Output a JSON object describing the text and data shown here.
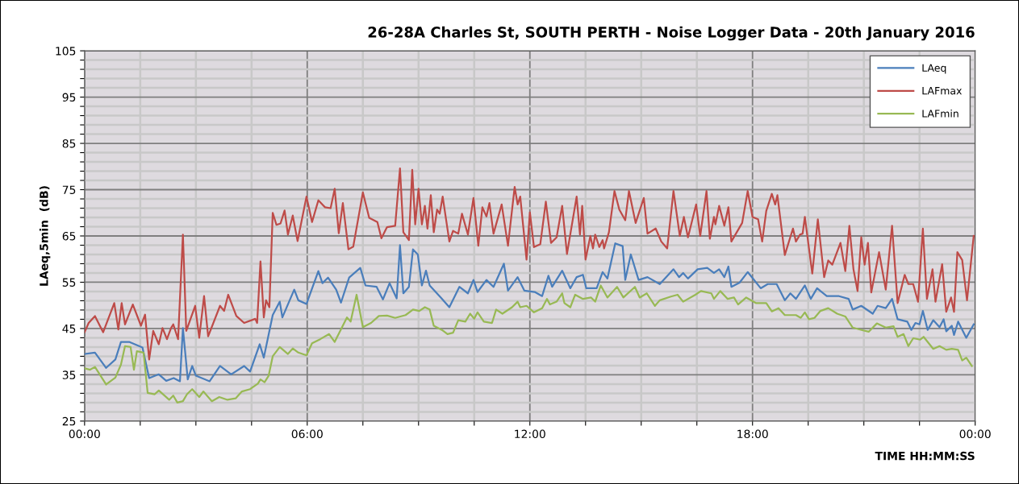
{
  "chart_data": {
    "type": "line",
    "title": "26-28A Charles St, SOUTH PERTH - Noise Logger Data - 20th January 2016",
    "xlabel": "TIME HH:MM:SS",
    "ylabel": "LAeq,5min  (dB)",
    "xlim": [
      0,
      24
    ],
    "ylim": [
      25,
      105
    ],
    "xticks": [
      {
        "value": 0,
        "label": "00:00"
      },
      {
        "value": 1.5,
        "label": null
      },
      {
        "value": 3,
        "label": null
      },
      {
        "value": 4.5,
        "label": null
      },
      {
        "value": 6,
        "label": "06:00"
      },
      {
        "value": 7.5,
        "label": null
      },
      {
        "value": 9,
        "label": null
      },
      {
        "value": 10.5,
        "label": null
      },
      {
        "value": 12,
        "label": "12:00"
      },
      {
        "value": 13.5,
        "label": null
      },
      {
        "value": 15,
        "label": null
      },
      {
        "value": 16.5,
        "label": null
      },
      {
        "value": 18,
        "label": "18:00"
      },
      {
        "value": 19.5,
        "label": null
      },
      {
        "value": 21,
        "label": null
      },
      {
        "value": 22.5,
        "label": null
      },
      {
        "value": 24,
        "label": "00:00"
      }
    ],
    "yticks": [
      25,
      {
        "value": 27,
        "label": null
      },
      {
        "value": 29,
        "label": null
      },
      {
        "value": 31,
        "label": null
      },
      {
        "value": 33,
        "label": null
      },
      35,
      {
        "value": 37,
        "label": null
      },
      {
        "value": 39,
        "label": null
      },
      {
        "value": 41,
        "label": null
      },
      {
        "value": 43,
        "label": null
      },
      45,
      {
        "value": 47,
        "label": null
      },
      {
        "value": 49,
        "label": null
      },
      {
        "value": 51,
        "label": null
      },
      {
        "value": 53,
        "label": null
      },
      55,
      {
        "value": 57,
        "label": null
      },
      {
        "value": 59,
        "label": null
      },
      {
        "value": 61,
        "label": null
      },
      {
        "value": 63,
        "label": null
      },
      65,
      {
        "value": 67,
        "label": null
      },
      {
        "value": 69,
        "label": null
      },
      {
        "value": 71,
        "label": null
      },
      {
        "value": 73,
        "label": null
      },
      75,
      {
        "value": 77,
        "label": null
      },
      {
        "value": 79,
        "label": null
      },
      {
        "value": 81,
        "label": null
      },
      {
        "value": 83,
        "label": null
      },
      85,
      {
        "value": 87,
        "label": null
      },
      {
        "value": 89,
        "label": null
      },
      {
        "value": 91,
        "label": null
      },
      {
        "value": 93,
        "label": null
      },
      95,
      {
        "value": 97,
        "label": null
      },
      {
        "value": 99,
        "label": null
      },
      {
        "value": 101,
        "label": null
      },
      {
        "value": 103,
        "label": null
      },
      105
    ],
    "grid": true,
    "legend": "top right",
    "marker": "none",
    "line_style": "solid",
    "series": [
      {
        "name": "LAeq",
        "color": "#4a7ebb",
        "x": [
          0,
          0.28,
          0.58,
          0.83,
          0.98,
          1.2,
          1.56,
          1.74,
          2.0,
          2.2,
          2.4,
          2.57,
          2.65,
          2.78,
          2.9,
          3.0,
          3.37,
          3.65,
          3.95,
          4.3,
          4.46,
          4.72,
          4.83,
          5.07,
          5.26,
          5.33,
          5.65,
          5.76,
          5.98,
          6.3,
          6.41,
          6.56,
          6.78,
          6.91,
          7.13,
          7.43,
          7.57,
          7.87,
          8.04,
          8.22,
          8.41,
          8.5,
          8.59,
          8.74,
          8.85,
          8.98,
          9.09,
          9.2,
          9.3,
          9.6,
          9.83,
          10.1,
          10.33,
          10.48,
          10.59,
          10.83,
          11.02,
          11.3,
          11.41,
          11.67,
          11.85,
          12.13,
          12.33,
          12.5,
          12.6,
          12.87,
          13.09,
          13.26,
          13.43,
          13.52,
          13.8,
          13.96,
          14.09,
          14.3,
          14.5,
          14.57,
          14.72,
          14.93,
          15.17,
          15.5,
          15.87,
          16.02,
          16.13,
          16.26,
          16.52,
          16.78,
          16.96,
          17.1,
          17.24,
          17.35,
          17.43,
          17.65,
          17.87,
          18.22,
          18.41,
          18.65,
          18.87,
          19.02,
          19.17,
          19.41,
          19.57,
          19.74,
          20.0,
          20.33,
          20.59,
          20.7,
          20.93,
          21.24,
          21.37,
          21.59,
          21.76,
          21.91,
          22.17,
          22.28,
          22.39,
          22.5,
          22.59,
          22.72,
          22.87,
          23.04,
          23.15,
          23.22,
          23.37,
          23.43,
          23.54,
          23.76,
          23.96
        ],
        "values": [
          39.5,
          39.8,
          36.5,
          38.3,
          42.1,
          42.1,
          40.9,
          34.3,
          35.1,
          33.7,
          34.3,
          33.6,
          45.1,
          34.0,
          36.9,
          34.8,
          33.6,
          36.9,
          35.1,
          36.9,
          35.7,
          41.6,
          38.7,
          47.9,
          50.8,
          47.4,
          53.4,
          51.1,
          50.3,
          57.4,
          54.8,
          56.0,
          53.4,
          50.6,
          56.0,
          58.1,
          54.3,
          54.0,
          51.3,
          54.8,
          51.5,
          63.0,
          52.6,
          54.0,
          62.1,
          61.0,
          54.3,
          57.5,
          54.3,
          51.7,
          49.6,
          54.0,
          52.6,
          55.5,
          52.9,
          55.5,
          54.0,
          59.0,
          53.2,
          56.1,
          53.2,
          52.9,
          52.0,
          56.4,
          54.0,
          57.5,
          53.7,
          56.1,
          56.6,
          53.7,
          53.7,
          57.2,
          55.8,
          63.4,
          62.8,
          55.5,
          61.0,
          55.5,
          56.1,
          54.6,
          57.8,
          56.1,
          57.0,
          55.8,
          57.8,
          58.1,
          57.0,
          57.8,
          56.1,
          58.4,
          54.0,
          54.9,
          57.2,
          53.7,
          54.6,
          54.6,
          51.1,
          52.6,
          51.4,
          54.3,
          51.4,
          53.7,
          52.0,
          52.0,
          51.4,
          49.1,
          49.9,
          48.2,
          49.9,
          49.4,
          51.4,
          47.0,
          46.5,
          44.7,
          46.2,
          45.9,
          48.8,
          44.7,
          46.8,
          45.3,
          47.0,
          44.4,
          45.6,
          43.6,
          46.5,
          43.0,
          45.9
        ]
      },
      {
        "name": "LAFmax",
        "color": "#be4b48",
        "x": [
          0,
          0.11,
          0.28,
          0.5,
          0.8,
          0.91,
          1.0,
          1.09,
          1.3,
          1.52,
          1.63,
          1.74,
          1.85,
          2.0,
          2.1,
          2.22,
          2.33,
          2.39,
          2.52,
          2.65,
          2.74,
          2.98,
          3.09,
          3.22,
          3.33,
          3.65,
          3.76,
          3.87,
          4.09,
          4.3,
          4.6,
          4.65,
          4.74,
          4.83,
          4.89,
          4.98,
          5.07,
          5.17,
          5.28,
          5.39,
          5.48,
          5.61,
          5.74,
          5.98,
          6.13,
          6.3,
          6.48,
          6.63,
          6.74,
          6.85,
          6.96,
          7.11,
          7.24,
          7.5,
          7.67,
          7.89,
          8.0,
          8.15,
          8.37,
          8.5,
          8.59,
          8.74,
          8.83,
          8.91,
          9.0,
          9.09,
          9.17,
          9.24,
          9.33,
          9.41,
          9.5,
          9.57,
          9.65,
          9.83,
          9.93,
          10.07,
          10.17,
          10.33,
          10.48,
          10.61,
          10.72,
          10.83,
          10.91,
          11.02,
          11.24,
          11.41,
          11.59,
          11.67,
          11.74,
          11.91,
          12.0,
          12.11,
          12.28,
          12.43,
          12.57,
          12.72,
          12.87,
          13.0,
          13.26,
          13.35,
          13.41,
          13.5,
          13.63,
          13.7,
          13.76,
          13.87,
          13.96,
          14.0,
          14.13,
          14.28,
          14.41,
          14.57,
          14.67,
          14.85,
          15.07,
          15.17,
          15.39,
          15.54,
          15.7,
          15.87,
          16.04,
          16.15,
          16.26,
          16.48,
          16.59,
          16.76,
          16.85,
          16.96,
          17.0,
          17.1,
          17.24,
          17.35,
          17.43,
          17.72,
          17.87,
          18.0,
          18.15,
          18.26,
          18.37,
          18.52,
          18.61,
          18.67,
          18.87,
          19.09,
          19.17,
          19.28,
          19.35,
          19.41,
          19.61,
          19.76,
          19.93,
          20.04,
          20.15,
          20.37,
          20.5,
          20.61,
          20.72,
          20.83,
          20.93,
          21.02,
          21.11,
          21.2,
          21.41,
          21.59,
          21.76,
          21.91,
          22.1,
          22.2,
          22.33,
          22.46,
          22.59,
          22.7,
          22.85,
          22.93,
          23.11,
          23.22,
          23.35,
          23.43,
          23.52,
          23.65,
          23.78,
          23.96
        ],
        "values": [
          44.2,
          46.2,
          47.7,
          44.2,
          50.5,
          44.8,
          50.5,
          45.9,
          50.2,
          45.6,
          48.0,
          38.3,
          44.5,
          41.6,
          45.1,
          42.7,
          45.1,
          45.9,
          42.7,
          65.3,
          44.5,
          49.9,
          43.0,
          52.0,
          43.3,
          49.9,
          48.8,
          52.3,
          47.7,
          46.2,
          47.1,
          46.2,
          59.5,
          47.4,
          51.1,
          49.6,
          70.0,
          67.4,
          67.7,
          70.5,
          65.3,
          69.4,
          63.9,
          73.5,
          68.0,
          72.7,
          71.2,
          71.0,
          75.2,
          65.6,
          72.1,
          62.1,
          62.7,
          74.4,
          68.9,
          68.0,
          64.5,
          66.9,
          67.2,
          79.6,
          65.8,
          64.1,
          79.3,
          67.5,
          75.2,
          67.5,
          71.5,
          66.6,
          73.8,
          65.8,
          70.7,
          69.8,
          73.5,
          63.8,
          66.1,
          65.5,
          69.8,
          65.3,
          73.2,
          62.9,
          71.2,
          69.2,
          72.1,
          65.5,
          71.8,
          62.9,
          75.6,
          71.8,
          73.5,
          59.9,
          70.1,
          62.6,
          63.2,
          72.4,
          63.5,
          64.7,
          71.5,
          61.1,
          73.5,
          65.3,
          71.5,
          59.9,
          65.0,
          62.3,
          65.3,
          62.6,
          64.1,
          62.3,
          65.8,
          74.7,
          70.7,
          68.4,
          74.7,
          67.8,
          73.2,
          65.5,
          66.6,
          63.8,
          62.3,
          74.7,
          65.0,
          69.1,
          64.7,
          71.8,
          65.0,
          74.7,
          64.4,
          69.1,
          67.5,
          71.5,
          67.2,
          71.2,
          63.8,
          67.8,
          74.7,
          69.1,
          68.6,
          63.8,
          70.4,
          74.1,
          71.8,
          73.8,
          60.9,
          66.6,
          63.8,
          65.3,
          65.5,
          69.1,
          56.9,
          68.6,
          56.1,
          59.7,
          58.8,
          63.5,
          57.4,
          67.2,
          57.8,
          53.1,
          64.7,
          58.8,
          63.5,
          52.8,
          61.5,
          53.4,
          67.2,
          50.5,
          56.6,
          54.6,
          54.6,
          50.8,
          66.6,
          51.4,
          57.8,
          50.8,
          58.9,
          48.6,
          51.7,
          48.6,
          61.5,
          59.8,
          51.1,
          65.0
        ]
      },
      {
        "name": "LAFmin",
        "color": "#98b954",
        "x": [
          0,
          0.15,
          0.28,
          0.58,
          0.83,
          0.98,
          1.09,
          1.24,
          1.33,
          1.41,
          1.59,
          1.7,
          1.89,
          2.0,
          2.28,
          2.39,
          2.5,
          2.65,
          2.76,
          2.9,
          3.09,
          3.2,
          3.43,
          3.63,
          3.85,
          4.07,
          4.24,
          4.46,
          4.67,
          4.74,
          4.85,
          4.96,
          5.07,
          5.26,
          5.48,
          5.61,
          5.76,
          5.98,
          6.13,
          6.35,
          6.59,
          6.74,
          7.07,
          7.17,
          7.33,
          7.5,
          7.72,
          7.93,
          8.15,
          8.37,
          8.65,
          8.85,
          9.02,
          9.17,
          9.3,
          9.41,
          9.63,
          9.78,
          9.93,
          10.07,
          10.26,
          10.39,
          10.5,
          10.59,
          10.76,
          10.98,
          11.09,
          11.26,
          11.52,
          11.67,
          11.74,
          11.91,
          12.11,
          12.33,
          12.46,
          12.54,
          12.72,
          12.87,
          12.93,
          13.09,
          13.22,
          13.43,
          13.65,
          13.76,
          13.91,
          14.09,
          14.35,
          14.52,
          14.83,
          14.96,
          15.15,
          15.37,
          15.5,
          15.8,
          15.98,
          16.13,
          16.46,
          16.61,
          16.89,
          16.96,
          17.13,
          17.33,
          17.5,
          17.61,
          17.83,
          18.09,
          18.37,
          18.52,
          18.7,
          18.87,
          19.17,
          19.3,
          19.41,
          19.52,
          19.67,
          19.83,
          20.04,
          20.28,
          20.5,
          20.7,
          20.98,
          21.13,
          21.35,
          21.59,
          21.8,
          21.91,
          22.07,
          22.2,
          22.33,
          22.52,
          22.61,
          22.87,
          23.04,
          23.22,
          23.37,
          23.54,
          23.65,
          23.76,
          23.91
        ],
        "values": [
          36.4,
          36.1,
          36.7,
          32.9,
          34.4,
          37.2,
          41.2,
          41.0,
          36.1,
          40.1,
          39.8,
          31.1,
          30.8,
          31.6,
          29.6,
          30.5,
          29.0,
          29.3,
          30.8,
          31.9,
          30.2,
          31.4,
          29.3,
          30.2,
          29.6,
          29.9,
          31.4,
          31.9,
          33.1,
          34.0,
          33.4,
          34.8,
          39.0,
          41.0,
          39.5,
          40.7,
          39.8,
          39.2,
          41.8,
          42.7,
          43.8,
          42.1,
          47.4,
          46.5,
          52.3,
          45.3,
          46.2,
          47.7,
          47.8,
          47.3,
          47.9,
          49.1,
          48.8,
          49.6,
          49.1,
          45.6,
          44.7,
          43.8,
          44.1,
          46.8,
          46.5,
          48.2,
          47.1,
          48.5,
          46.5,
          46.2,
          49.1,
          48.2,
          49.6,
          50.8,
          49.6,
          49.9,
          48.5,
          49.4,
          51.4,
          50.2,
          50.8,
          52.6,
          50.5,
          49.6,
          52.3,
          51.4,
          51.7,
          50.8,
          54.3,
          51.7,
          54.0,
          51.7,
          54.0,
          51.7,
          52.6,
          49.9,
          51.1,
          51.9,
          52.3,
          50.8,
          52.3,
          53.1,
          52.6,
          51.4,
          53.1,
          51.4,
          51.7,
          50.2,
          51.7,
          50.5,
          50.5,
          48.7,
          49.4,
          47.9,
          47.9,
          47.3,
          48.5,
          47.0,
          47.3,
          48.8,
          49.4,
          48.2,
          47.6,
          45.2,
          44.6,
          44.3,
          46.1,
          45.2,
          45.5,
          43.2,
          43.8,
          41.2,
          42.9,
          42.6,
          43.2,
          40.6,
          41.2,
          40.4,
          40.6,
          40.4,
          38.1,
          38.7,
          36.9
        ]
      }
    ]
  }
}
